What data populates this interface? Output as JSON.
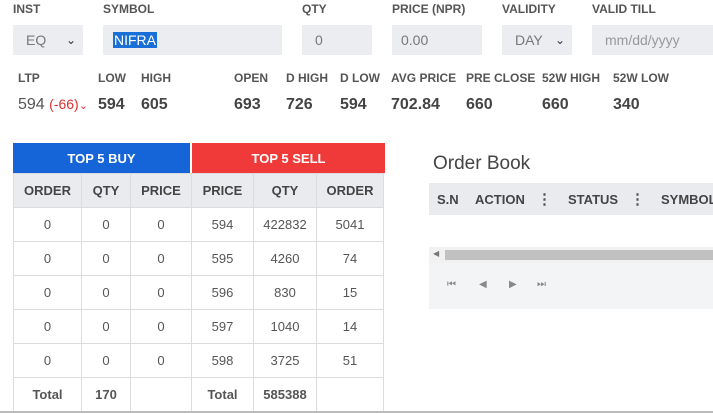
{
  "form": {
    "inst_label": "INST",
    "inst_value": "EQ",
    "symbol_label": "SYMBOL",
    "symbol_value": "NIFRA",
    "qty_label": "QTY",
    "qty_value": "0",
    "price_label": "PRICE (NPR)",
    "price_value": "0.00",
    "validity_label": "VALIDITY",
    "validity_value": "DAY",
    "valid_till_label": "VALID TILL",
    "valid_till_placeholder": "mm/dd/yyyy"
  },
  "stats": {
    "ltp_label": "LTP",
    "ltp_value": "594",
    "ltp_change": "(-66)",
    "low_label": "LOW",
    "low_value": "594",
    "high_label": "HIGH",
    "high_value": "605",
    "open_label": "OPEN",
    "open_value": "693",
    "dhigh_label": "D HIGH",
    "dhigh_value": "726",
    "dlow_label": "D LOW",
    "dlow_value": "594",
    "avg_label": "AVG PRICE",
    "avg_value": "702.84",
    "preclose_label": "PRE CLOSE",
    "preclose_value": "660",
    "w52high_label": "52W HIGH",
    "w52high_value": "660",
    "w52low_label": "52W LOW",
    "w52low_value": "340"
  },
  "depth": {
    "buy_tab": "TOP 5 BUY",
    "sell_tab": "TOP 5 SELL",
    "headers": [
      "ORDER",
      "QTY",
      "PRICE",
      "PRICE",
      "QTY",
      "ORDER"
    ],
    "rows": [
      [
        "0",
        "0",
        "0",
        "594",
        "422832",
        "5041"
      ],
      [
        "0",
        "0",
        "0",
        "595",
        "4260",
        "74"
      ],
      [
        "0",
        "0",
        "0",
        "596",
        "830",
        "15"
      ],
      [
        "0",
        "0",
        "0",
        "597",
        "1040",
        "14"
      ],
      [
        "0",
        "0",
        "0",
        "598",
        "3725",
        "51"
      ]
    ],
    "totals": {
      "buy_label": "Total",
      "buy_qty": "170",
      "sell_label": "Total",
      "sell_qty": "585388"
    }
  },
  "order_book": {
    "title": "Order Book",
    "columns": [
      "S.N",
      "ACTION",
      "STATUS",
      "SYMBOL"
    ]
  },
  "colors": {
    "buy": "#1565d8",
    "sell": "#f03a3a",
    "negative": "#e03030"
  }
}
